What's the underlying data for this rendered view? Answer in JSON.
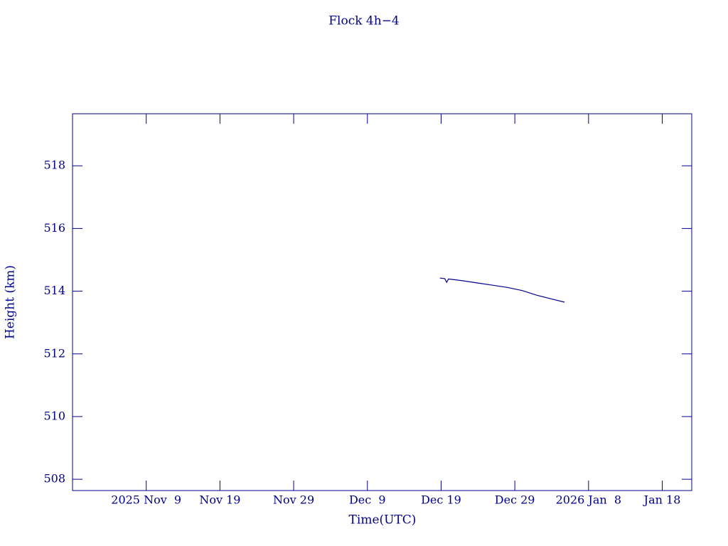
{
  "chart_data": {
    "type": "line",
    "title": "Flock 4h−4",
    "x_label": "Time(UTC)",
    "y_label": "Height (km)",
    "xlim": [
      "2025-10-30T00:00",
      "2026-01-22T00:00"
    ],
    "xticks": [
      {
        "value": "2025-11-09T00:00",
        "label": "2025 Nov  9"
      },
      {
        "value": "2025-11-19T00:00",
        "label": "Nov 19"
      },
      {
        "value": "2025-11-29T00:00",
        "label": "Nov 29"
      },
      {
        "value": "2025-12-09T00:00",
        "label": "Dec  9"
      },
      {
        "value": "2025-12-19T00:00",
        "label": "Dec 19"
      },
      {
        "value": "2025-12-29T00:00",
        "label": "Dec 29"
      },
      {
        "value": "2026-01-08T00:00",
        "label": "2026 Jan  8"
      },
      {
        "value": "2026-01-18T00:00",
        "label": "Jan 18"
      }
    ],
    "ylim": [
      507.64,
      519.66
    ],
    "yticks": [
      508,
      510,
      512,
      514,
      516,
      518
    ],
    "color": "#00008b",
    "x": [
      "2025-12-18T20:00",
      "2025-12-19T12:00",
      "2025-12-19T18:00",
      "2025-12-20T00:00",
      "2025-12-22T00:00",
      "2025-12-24T00:00",
      "2025-12-26T00:00",
      "2025-12-28T00:00",
      "2025-12-30T00:00",
      "2026-01-01T00:00",
      "2026-01-03T00:00",
      "2026-01-04T18:00"
    ],
    "values": [
      514.42,
      514.4,
      514.28,
      514.39,
      514.33,
      514.26,
      514.19,
      514.12,
      514.02,
      513.87,
      513.75,
      513.65
    ]
  }
}
